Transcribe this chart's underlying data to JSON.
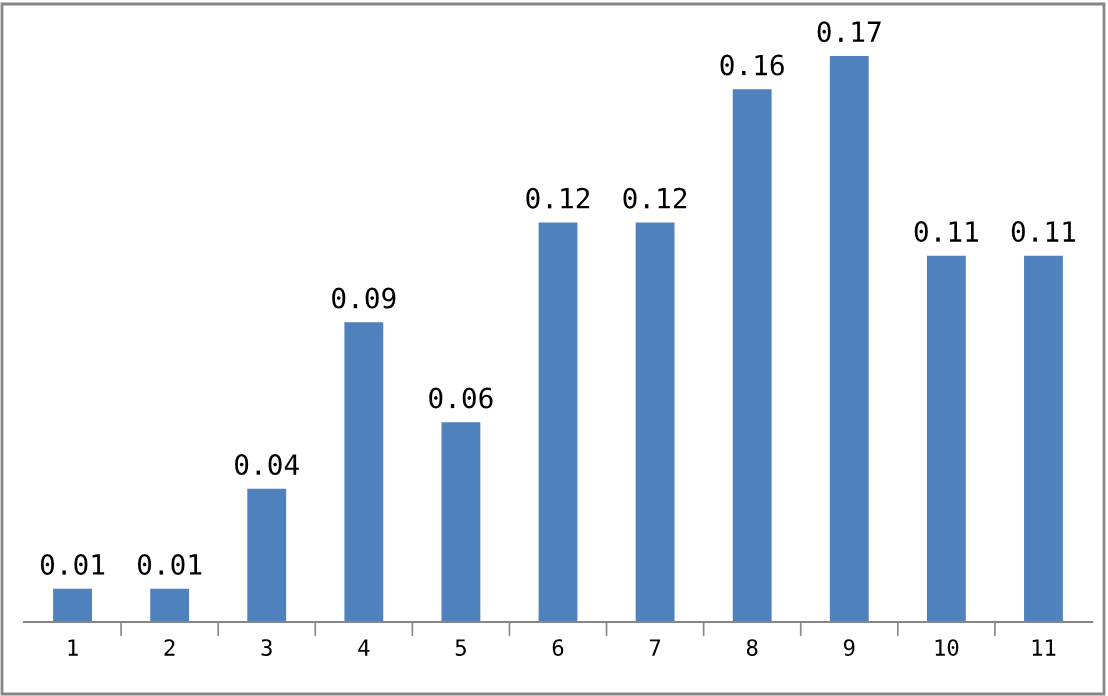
{
  "chart_data": {
    "type": "bar",
    "categories": [
      "1",
      "2",
      "3",
      "4",
      "5",
      "6",
      "7",
      "8",
      "9",
      "10",
      "11"
    ],
    "values": [
      0.01,
      0.01,
      0.04,
      0.09,
      0.06,
      0.12,
      0.12,
      0.16,
      0.17,
      0.11,
      0.11
    ],
    "color": "#4f81bd",
    "data_labels": true,
    "grid": false,
    "legend": false
  }
}
